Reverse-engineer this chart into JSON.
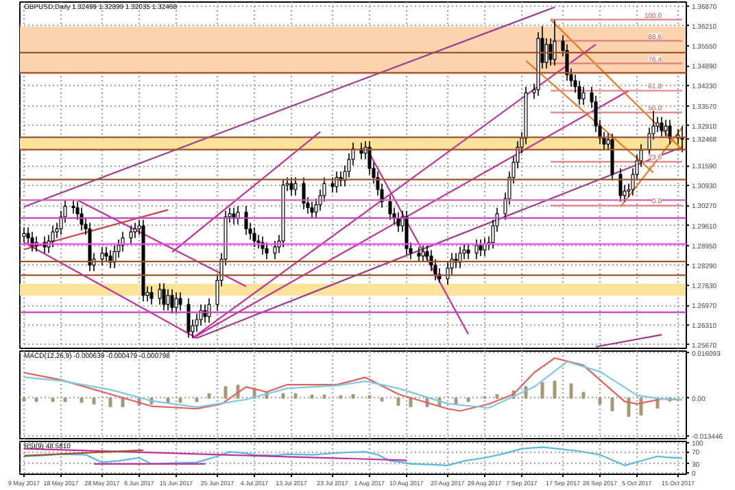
{
  "chart_data": [
    {
      "type": "candlestick",
      "title": "GBPUSD,Daily  1.32499 1.32899 1.32035 1.32468",
      "tick_labels": "y",
      "grid": true,
      "xlim": [
        "2017-05-08",
        "2017-10-17"
      ],
      "xticks": [
        "2017-05-09",
        "2017-05-18",
        "2017-05-28",
        "2017-06-06",
        "2017-06-15",
        "2017-06-25",
        "2017-07-04",
        "2017-07-13",
        "2017-07-23",
        "2017-08-01",
        "2017-08-10",
        "2017-08-20",
        "2017-08-29",
        "2017-09-07",
        "2017-09-17",
        "2017-09-26",
        "2017-10-05",
        "2017-10-15"
      ],
      "ylim": [
        1.2555,
        1.37
      ],
      "yticks": [
        {
          "value": 1.3687,
          "label": "1.36870"
        },
        {
          "value": 1.3621,
          "label": "1.36210"
        },
        {
          "value": 1.3555,
          "label": "1.35550"
        },
        {
          "value": 1.3489,
          "label": "1.34890"
        },
        {
          "value": 1.3423,
          "label": "1.34230"
        },
        {
          "value": 1.3357,
          "label": "1.33570"
        },
        {
          "value": 1.3291,
          "label": "1.32910"
        },
        {
          "value": 1.32468,
          "label": "1.32468"
        },
        {
          "value": 1.3159,
          "label": "1.31590"
        },
        {
          "value": 1.3093,
          "label": "1.30930"
        },
        {
          "value": 1.3027,
          "label": "1.30270"
        },
        {
          "value": 1.2961,
          "label": "1.29610"
        },
        {
          "value": 1.2895,
          "label": "1.28950"
        },
        {
          "value": 1.2829,
          "label": "1.28290"
        },
        {
          "value": 1.2763,
          "label": "1.27630"
        },
        {
          "value": 1.2697,
          "label": "1.26970"
        },
        {
          "value": 1.2631,
          "label": "1.26310"
        },
        {
          "value": 1.2567,
          "label": "1.25670"
        }
      ],
      "x": [
        "2017-05-09",
        "2017-05-10",
        "2017-05-11",
        "2017-05-12",
        "2017-05-14",
        "2017-05-15",
        "2017-05-16",
        "2017-05-17",
        "2017-05-18",
        "2017-05-19",
        "2017-05-21",
        "2017-05-22",
        "2017-05-23",
        "2017-05-24",
        "2017-05-25",
        "2017-05-26",
        "2017-05-28",
        "2017-05-29",
        "2017-05-30",
        "2017-05-31",
        "2017-06-01",
        "2017-06-02",
        "2017-06-04",
        "2017-06-05",
        "2017-06-06",
        "2017-06-07",
        "2017-06-08",
        "2017-06-09",
        "2017-06-11",
        "2017-06-12",
        "2017-06-13",
        "2017-06-14",
        "2017-06-15",
        "2017-06-16",
        "2017-06-18",
        "2017-06-19",
        "2017-06-20",
        "2017-06-21",
        "2017-06-22",
        "2017-06-23",
        "2017-06-25",
        "2017-06-26",
        "2017-06-27",
        "2017-06-28",
        "2017-06-29",
        "2017-06-30",
        "2017-07-02",
        "2017-07-03",
        "2017-07-04",
        "2017-07-05",
        "2017-07-06",
        "2017-07-07",
        "2017-07-09",
        "2017-07-10",
        "2017-07-11",
        "2017-07-12",
        "2017-07-13",
        "2017-07-14",
        "2017-07-16",
        "2017-07-17",
        "2017-07-18",
        "2017-07-19",
        "2017-07-20",
        "2017-07-21",
        "2017-07-23",
        "2017-07-24",
        "2017-07-25",
        "2017-07-26",
        "2017-07-27",
        "2017-07-28",
        "2017-07-30",
        "2017-07-31",
        "2017-08-01",
        "2017-08-02",
        "2017-08-03",
        "2017-08-04",
        "2017-08-06",
        "2017-08-07",
        "2017-08-08",
        "2017-08-09",
        "2017-08-10",
        "2017-08-11",
        "2017-08-13",
        "2017-08-14",
        "2017-08-15",
        "2017-08-16",
        "2017-08-17",
        "2017-08-18",
        "2017-08-20",
        "2017-08-21",
        "2017-08-22",
        "2017-08-23",
        "2017-08-24",
        "2017-08-25",
        "2017-08-27",
        "2017-08-28",
        "2017-08-29",
        "2017-08-30",
        "2017-08-31",
        "2017-09-01",
        "2017-09-03",
        "2017-09-04",
        "2017-09-05",
        "2017-09-06",
        "2017-09-07",
        "2017-09-08",
        "2017-09-10",
        "2017-09-11",
        "2017-09-12",
        "2017-09-13",
        "2017-09-14",
        "2017-09-15",
        "2017-09-17",
        "2017-09-18",
        "2017-09-19",
        "2017-09-20",
        "2017-09-21",
        "2017-09-22",
        "2017-09-24",
        "2017-09-25",
        "2017-09-26",
        "2017-09-27",
        "2017-09-28",
        "2017-09-29",
        "2017-10-01",
        "2017-10-02",
        "2017-10-03",
        "2017-10-04",
        "2017-10-05",
        "2017-10-06",
        "2017-10-08",
        "2017-10-09",
        "2017-10-10",
        "2017-10-11",
        "2017-10-12",
        "2017-10-13",
        "2017-10-15",
        "2017-10-16"
      ],
      "ohlc": [
        [
          1.2925,
          1.2955,
          1.2905,
          1.2935
        ],
        [
          1.2935,
          1.2955,
          1.29,
          1.292
        ],
        [
          1.292,
          1.294,
          1.2875,
          1.2895
        ],
        [
          1.2895,
          1.2925,
          1.2875,
          1.2905
        ],
        [
          1.2905,
          1.2925,
          1.287,
          1.289
        ],
        [
          1.289,
          1.293,
          1.287,
          1.291
        ],
        [
          1.291,
          1.296,
          1.289,
          1.294
        ],
        [
          1.294,
          1.297,
          1.292,
          1.295
        ],
        [
          1.295,
          1.301,
          1.293,
          1.299
        ],
        [
          1.299,
          1.3045,
          1.297,
          1.3025
        ],
        [
          1.3025,
          1.3045,
          1.3,
          1.302
        ],
        [
          1.302,
          1.304,
          1.298,
          1.3
        ],
        [
          1.3,
          1.302,
          1.2945,
          1.2965
        ],
        [
          1.2965,
          1.2985,
          1.293,
          1.295
        ],
        [
          1.295,
          1.297,
          1.281,
          1.283
        ],
        [
          1.283,
          1.287,
          1.281,
          1.285
        ],
        [
          1.285,
          1.289,
          1.283,
          1.287
        ],
        [
          1.287,
          1.289,
          1.284,
          1.286
        ],
        [
          1.286,
          1.288,
          1.282,
          1.284
        ],
        [
          1.284,
          1.2895,
          1.282,
          1.2875
        ],
        [
          1.2875,
          1.2915,
          1.2855,
          1.2895
        ],
        [
          1.2895,
          1.294,
          1.2875,
          1.292
        ],
        [
          1.292,
          1.296,
          1.29,
          1.294
        ],
        [
          1.294,
          1.297,
          1.292,
          1.295
        ],
        [
          1.295,
          1.298,
          1.293,
          1.296
        ],
        [
          1.296,
          1.298,
          1.271,
          1.273
        ],
        [
          1.273,
          1.276,
          1.271,
          1.274
        ],
        [
          1.274,
          1.276,
          1.27,
          1.272
        ],
        [
          1.272,
          1.277,
          1.27,
          1.275
        ],
        [
          1.275,
          1.277,
          1.268,
          1.27
        ],
        [
          1.27,
          1.275,
          1.268,
          1.273
        ],
        [
          1.273,
          1.275,
          1.267,
          1.269
        ],
        [
          1.269,
          1.274,
          1.267,
          1.272
        ],
        [
          1.272,
          1.274,
          1.268,
          1.27
        ],
        [
          1.27,
          1.272,
          1.259,
          1.261
        ],
        [
          1.261,
          1.265,
          1.259,
          1.263
        ],
        [
          1.263,
          1.267,
          1.261,
          1.265
        ],
        [
          1.265,
          1.27,
          1.263,
          1.268
        ],
        [
          1.268,
          1.27,
          1.264,
          1.266
        ],
        [
          1.266,
          1.272,
          1.264,
          1.27
        ],
        [
          1.27,
          1.28,
          1.268,
          1.278
        ],
        [
          1.278,
          1.287,
          1.276,
          1.285
        ],
        [
          1.285,
          1.301,
          1.283,
          1.299
        ],
        [
          1.299,
          1.302,
          1.297,
          1.3
        ],
        [
          1.3,
          1.302,
          1.2965,
          1.2985
        ],
        [
          1.2985,
          1.3025,
          1.2965,
          1.3005
        ],
        [
          1.3005,
          1.3025,
          1.293,
          1.295
        ],
        [
          1.295,
          1.297,
          1.2915,
          1.2935
        ],
        [
          1.2935,
          1.2955,
          1.289,
          1.291
        ],
        [
          1.291,
          1.293,
          1.2885,
          1.2905
        ],
        [
          1.2905,
          1.2925,
          1.2865,
          1.2885
        ],
        [
          1.2885,
          1.2905,
          1.285,
          1.287
        ],
        [
          1.287,
          1.291,
          1.285,
          1.289
        ],
        [
          1.289,
          1.293,
          1.287,
          1.291
        ],
        [
          1.291,
          1.3115,
          1.289,
          1.3095
        ],
        [
          1.3095,
          1.312,
          1.3075,
          1.31
        ],
        [
          1.31,
          1.312,
          1.306,
          1.308
        ],
        [
          1.308,
          1.312,
          1.306,
          1.31
        ],
        [
          1.31,
          1.312,
          1.3015,
          1.3035
        ],
        [
          1.3035,
          1.3055,
          1.3,
          1.302
        ],
        [
          1.302,
          1.304,
          1.2985,
          1.3005
        ],
        [
          1.3005,
          1.305,
          1.2985,
          1.303
        ],
        [
          1.303,
          1.308,
          1.301,
          1.306
        ],
        [
          1.306,
          1.312,
          1.304,
          1.31
        ],
        [
          1.31,
          1.312,
          1.307,
          1.309
        ],
        [
          1.309,
          1.314,
          1.307,
          1.312
        ],
        [
          1.312,
          1.314,
          1.309,
          1.311
        ],
        [
          1.311,
          1.316,
          1.309,
          1.314
        ],
        [
          1.314,
          1.32,
          1.312,
          1.318
        ],
        [
          1.318,
          1.3235,
          1.316,
          1.3215
        ],
        [
          1.3215,
          1.3235,
          1.318,
          1.32
        ],
        [
          1.32,
          1.324,
          1.318,
          1.322
        ],
        [
          1.322,
          1.324,
          1.313,
          1.315
        ],
        [
          1.315,
          1.317,
          1.31,
          1.312
        ],
        [
          1.312,
          1.314,
          1.306,
          1.308
        ],
        [
          1.308,
          1.31,
          1.302,
          1.304
        ],
        [
          1.304,
          1.306,
          1.298,
          1.3
        ],
        [
          1.3,
          1.302,
          1.2965,
          1.2985
        ],
        [
          1.2985,
          1.3005,
          1.294,
          1.296
        ],
        [
          1.296,
          1.301,
          1.294,
          1.299
        ],
        [
          1.299,
          1.301,
          1.2865,
          1.2885
        ],
        [
          1.2885,
          1.2905,
          1.285,
          1.287
        ],
        [
          1.287,
          1.289,
          1.284,
          1.286
        ],
        [
          1.286,
          1.2895,
          1.284,
          1.2875
        ],
        [
          1.2875,
          1.2895,
          1.284,
          1.286
        ],
        [
          1.286,
          1.288,
          1.281,
          1.283
        ],
        [
          1.283,
          1.285,
          1.278,
          1.28
        ],
        [
          1.28,
          1.282,
          1.2772,
          1.2785
        ],
        [
          1.2785,
          1.284,
          1.2765,
          1.282
        ],
        [
          1.282,
          1.287,
          1.28,
          1.285
        ],
        [
          1.285,
          1.287,
          1.282,
          1.284
        ],
        [
          1.284,
          1.289,
          1.282,
          1.287
        ],
        [
          1.287,
          1.29,
          1.285,
          1.288
        ],
        [
          1.288,
          1.29,
          1.285,
          1.287
        ],
        [
          1.287,
          1.2915,
          1.285,
          1.2895
        ],
        [
          1.2895,
          1.2915,
          1.286,
          1.288
        ],
        [
          1.288,
          1.292,
          1.286,
          1.29
        ],
        [
          1.29,
          1.2925,
          1.288,
          1.2905
        ],
        [
          1.2905,
          1.298,
          1.2885,
          1.296
        ],
        [
          1.296,
          1.302,
          1.294,
          1.3
        ],
        [
          1.3,
          1.307,
          1.298,
          1.305
        ],
        [
          1.305,
          1.314,
          1.303,
          1.312
        ],
        [
          1.312,
          1.319,
          1.31,
          1.317
        ],
        [
          1.317,
          1.324,
          1.315,
          1.322
        ],
        [
          1.322,
          1.327,
          1.32,
          1.325
        ],
        [
          1.325,
          1.342,
          1.323,
          1.34
        ],
        [
          1.34,
          1.343,
          1.338,
          1.341
        ],
        [
          1.341,
          1.36,
          1.339,
          1.358
        ],
        [
          1.358,
          1.362,
          1.348,
          1.35
        ],
        [
          1.35,
          1.358,
          1.348,
          1.356
        ],
        [
          1.356,
          1.358,
          1.349,
          1.351
        ],
        [
          1.351,
          1.364,
          1.349,
          1.357
        ],
        [
          1.357,
          1.359,
          1.352,
          1.354
        ],
        [
          1.354,
          1.356,
          1.344,
          1.346
        ],
        [
          1.346,
          1.348,
          1.342,
          1.344
        ],
        [
          1.344,
          1.346,
          1.34,
          1.342
        ],
        [
          1.342,
          1.344,
          1.336,
          1.338
        ],
        [
          1.338,
          1.342,
          1.336,
          1.34
        ],
        [
          1.34,
          1.342,
          1.335,
          1.337
        ],
        [
          1.337,
          1.339,
          1.327,
          1.329
        ],
        [
          1.329,
          1.331,
          1.323,
          1.325
        ],
        [
          1.325,
          1.327,
          1.321,
          1.323
        ],
        [
          1.323,
          1.3265,
          1.321,
          1.3245
        ],
        [
          1.3245,
          1.3265,
          1.311,
          1.313
        ],
        [
          1.313,
          1.315,
          1.304,
          1.306
        ],
        [
          1.306,
          1.3095,
          1.304,
          1.3075
        ],
        [
          1.3075,
          1.31,
          1.3055,
          1.308
        ],
        [
          1.308,
          1.315,
          1.306,
          1.313
        ],
        [
          1.313,
          1.3195,
          1.311,
          1.3175
        ],
        [
          1.3175,
          1.323,
          1.3155,
          1.321
        ],
        [
          1.321,
          1.3285,
          1.319,
          1.3265
        ],
        [
          1.3265,
          1.334,
          1.3245,
          1.329
        ],
        [
          1.329,
          1.332,
          1.327,
          1.33
        ],
        [
          1.33,
          1.332,
          1.3255,
          1.3275
        ],
        [
          1.3275,
          1.331,
          1.3255,
          1.329
        ],
        [
          1.329,
          1.331,
          1.323,
          1.325
        ],
        [
          1.325,
          1.328,
          1.323,
          1.326
        ],
        [
          1.32499,
          1.32899,
          1.32035,
          1.32468
        ]
      ],
      "bands": [
        {
          "axis": "y",
          "from": 1.3461,
          "to": 1.3619,
          "color": "#fbd3ae"
        },
        {
          "axis": "y",
          "from": 1.2729,
          "to": 1.2769,
          "color": "#fbe49a"
        },
        {
          "axis": "y",
          "from": 1.3212,
          "to": 1.3249,
          "color": "#fbe49a"
        }
      ],
      "ref_lines": [
        {
          "axis": "y",
          "value": 1.3533,
          "color": "#a0522d"
        },
        {
          "axis": "y",
          "value": 1.3466,
          "color": "#a0522d"
        },
        {
          "axis": "y",
          "value": 1.3253,
          "color": "#a0522d"
        },
        {
          "axis": "y",
          "value": 1.3212,
          "color": "#a0522d"
        },
        {
          "axis": "y",
          "value": 1.3113,
          "color": "#a0522d"
        },
        {
          "axis": "y",
          "value": 1.3045,
          "color": "#d060b0"
        },
        {
          "axis": "y",
          "value": 1.2986,
          "color": "#c040c0"
        },
        {
          "axis": "y",
          "value": 1.29,
          "color": "#ff40ff"
        },
        {
          "axis": "y",
          "value": 1.2842,
          "color": "#a0522d"
        },
        {
          "axis": "y",
          "value": 1.2797,
          "color": "#a0522d"
        },
        {
          "axis": "y",
          "value": 1.2674,
          "color": "#c040c0"
        }
      ],
      "series": [
        {
          "type": "line",
          "color": "#9b3b8f",
          "x": [
            "2017-05-09",
            "2017-09-15"
          ],
          "values": [
            1.3023,
            1.3683
          ]
        },
        {
          "type": "line",
          "color": "#c0309c",
          "x": [
            "2017-06-14",
            "2017-07-20"
          ],
          "values": [
            1.2873,
            1.3271
          ]
        },
        {
          "type": "line",
          "color": "#d04040",
          "x": [
            "2017-05-09",
            "2017-06-13"
          ],
          "values": [
            1.2882,
            1.3013
          ]
        },
        {
          "type": "line",
          "color": "#c0309c",
          "x": [
            "2017-05-22",
            "2017-07-02"
          ],
          "values": [
            1.3045,
            1.276
          ]
        },
        {
          "type": "line",
          "color": "#c0309c",
          "x": [
            "2017-05-09",
            "2017-06-20"
          ],
          "values": [
            1.2905,
            1.2589
          ]
        },
        {
          "type": "line",
          "color": "#c0309c",
          "x": [
            "2017-06-19",
            "2017-10-03"
          ],
          "values": [
            1.2589,
            1.3407
          ]
        },
        {
          "type": "line",
          "color": "#c0309c",
          "x": [
            "2017-06-19",
            "2017-09-25"
          ],
          "values": [
            1.2589,
            1.356
          ]
        },
        {
          "type": "line",
          "color": "#9b3b8f",
          "x": [
            "2017-06-20",
            "2017-10-16"
          ],
          "values": [
            1.2589,
            1.3221
          ]
        },
        {
          "type": "line",
          "color": "#e87722",
          "x": [
            "2017-09-14",
            "2017-10-16"
          ],
          "values": [
            1.3642,
            1.3212
          ]
        },
        {
          "type": "line",
          "color": "#e87722",
          "x": [
            "2017-09-08",
            "2017-10-09"
          ],
          "values": [
            1.3506,
            1.3136
          ]
        },
        {
          "type": "line",
          "color": "#e87722",
          "x": [
            "2017-10-01",
            "2017-10-16"
          ],
          "values": [
            1.3023,
            1.3285
          ]
        },
        {
          "type": "line",
          "color": "#c0309c",
          "x": [
            "2017-08-01",
            "2017-08-25"
          ],
          "values": [
            1.3199,
            1.2602
          ]
        },
        {
          "type": "line",
          "color": "#9b3b8f",
          "x": [
            "2017-09-25",
            "2017-10-11"
          ],
          "values": [
            1.256,
            1.26
          ]
        },
        {
          "type": "line",
          "color": "#e08080",
          "x": [
            "2017-09-14",
            "2017-10-16"
          ],
          "values": [
            1.3642,
            1.3642
          ]
        },
        {
          "type": "line",
          "color": "#e08080",
          "x": [
            "2017-09-14",
            "2017-10-16"
          ],
          "values": [
            1.3572,
            1.3572
          ]
        },
        {
          "type": "line",
          "color": "#e08080",
          "x": [
            "2017-09-14",
            "2017-10-16"
          ],
          "values": [
            1.3497,
            1.3497
          ]
        },
        {
          "type": "line",
          "color": "#e08080",
          "x": [
            "2017-09-14",
            "2017-10-16"
          ],
          "values": [
            1.3407,
            1.3407
          ]
        },
        {
          "type": "line",
          "color": "#e08080",
          "x": [
            "2017-09-14",
            "2017-10-16"
          ],
          "values": [
            1.3335,
            1.3335
          ]
        },
        {
          "type": "line",
          "color": "#e08080",
          "x": [
            "2017-09-14",
            "2017-10-16"
          ],
          "values": [
            1.3172,
            1.3172
          ]
        },
        {
          "type": "line",
          "color": "#e08080",
          "x": [
            "2017-09-14",
            "2017-10-16"
          ],
          "values": [
            1.3027,
            1.3027
          ]
        }
      ],
      "annotations": [
        {
          "text": "100.0",
          "x": "2017-10-11",
          "y": 1.3642
        },
        {
          "text": "88.6",
          "x": "2017-10-11",
          "y": 1.3572
        },
        {
          "text": "76.4",
          "x": "2017-10-11",
          "y": 1.3497
        },
        {
          "text": "61.8",
          "x": "2017-10-11",
          "y": 1.3407
        },
        {
          "text": "50.0",
          "x": "2017-10-11",
          "y": 1.3335
        },
        {
          "text": "23.6",
          "x": "2017-10-11",
          "y": 1.3172
        },
        {
          "text": "0.0",
          "x": "2017-10-11",
          "y": 1.3027
        }
      ]
    },
    {
      "type": "bar",
      "title": "MACD(12,26,9) -0.000639 -0.000479 -0.000798",
      "tick_labels": "y",
      "grid": true,
      "xlim": [
        "2017-05-08",
        "2017-10-17"
      ],
      "xticks": [
        "2017-05-09",
        "2017-05-18",
        "2017-05-28",
        "2017-06-06",
        "2017-06-15",
        "2017-06-25",
        "2017-07-04",
        "2017-07-13",
        "2017-07-23",
        "2017-08-01",
        "2017-08-10",
        "2017-08-20",
        "2017-08-29",
        "2017-09-07",
        "2017-09-17",
        "2017-09-26",
        "2017-10-05",
        "2017-10-15"
      ],
      "ylim": [
        -0.0145,
        0.0168
      ],
      "yticks": [
        {
          "value": 0.016093,
          "label": "0.016093"
        },
        {
          "value": 0,
          "label": "0.00"
        },
        {
          "value": -0.013446,
          "label": "-0.013446"
        }
      ],
      "series": [
        {
          "type": "bar",
          "color": "#a8977a",
          "x": [
            "2017-05-09",
            "2017-05-12",
            "2017-05-16",
            "2017-05-19",
            "2017-05-23",
            "2017-05-26",
            "2017-05-30",
            "2017-06-02",
            "2017-06-06",
            "2017-06-09",
            "2017-06-13",
            "2017-06-16",
            "2017-06-20",
            "2017-06-23",
            "2017-06-27",
            "2017-06-30",
            "2017-07-04",
            "2017-07-07",
            "2017-07-11",
            "2017-07-14",
            "2017-07-18",
            "2017-07-21",
            "2017-07-25",
            "2017-07-28",
            "2017-08-01",
            "2017-08-04",
            "2017-08-08",
            "2017-08-11",
            "2017-08-15",
            "2017-08-18",
            "2017-08-22",
            "2017-08-25",
            "2017-08-29",
            "2017-09-01",
            "2017-09-05",
            "2017-09-08",
            "2017-09-12",
            "2017-09-15",
            "2017-09-19",
            "2017-09-22",
            "2017-09-26",
            "2017-09-29",
            "2017-10-03",
            "2017-10-06",
            "2017-10-10",
            "2017-10-13"
          ],
          "values": [
            -0.001,
            -0.0012,
            -0.0012,
            -0.0012,
            -0.0015,
            -0.002,
            -0.003,
            -0.003,
            -0.0025,
            -0.002,
            -0.0018,
            -0.0015,
            -0.0012,
            0.0015,
            0.004,
            0.0045,
            0.0035,
            0.002,
            0.0015,
            0.0015,
            0.001,
            0.001,
            0.0008,
            0.0012,
            0.0008,
            -0.001,
            -0.0025,
            -0.003,
            -0.003,
            -0.0025,
            -0.002,
            -0.0012,
            0.0005,
            0.0012,
            0.0025,
            0.004,
            0.0055,
            0.006,
            0.005,
            0.002,
            -0.002,
            -0.0045,
            -0.0065,
            -0.006,
            -0.0035,
            -0.001
          ]
        },
        {
          "type": "line",
          "color": "#e0605a",
          "x": [
            "2017-05-09",
            "2017-05-18",
            "2017-05-30",
            "2017-06-09",
            "2017-06-20",
            "2017-06-26",
            "2017-07-02",
            "2017-07-07",
            "2017-07-12",
            "2017-07-24",
            "2017-07-31",
            "2017-08-08",
            "2017-08-20",
            "2017-08-23",
            "2017-08-30",
            "2017-09-05",
            "2017-09-10",
            "2017-09-15",
            "2017-09-22",
            "2017-09-26",
            "2017-10-02",
            "2017-10-05",
            "2017-10-11",
            "2017-10-16"
          ],
          "values": [
            0.0091,
            0.0065,
            0.0014,
            -0.0029,
            -0.0038,
            -0.0021,
            0.004,
            0.0022,
            0.0048,
            0.0048,
            0.0074,
            0.0014,
            -0.0038,
            -0.0046,
            -0.0021,
            0.0014,
            0.0091,
            0.0143,
            0.0117,
            0.0065,
            -0.0012,
            -0.0021,
            -0.0003,
            -0.0006
          ]
        },
        {
          "type": "line",
          "color": "#7ec8e3",
          "x": [
            "2017-05-09",
            "2017-05-18",
            "2017-05-30",
            "2017-06-09",
            "2017-06-20",
            "2017-07-02",
            "2017-07-12",
            "2017-07-24",
            "2017-07-31",
            "2017-08-08",
            "2017-08-20",
            "2017-08-30",
            "2017-09-10",
            "2017-09-18",
            "2017-09-26",
            "2017-10-05",
            "2017-10-11",
            "2017-10-16"
          ],
          "values": [
            0.0075,
            0.0062,
            0.003,
            -0.001,
            -0.0032,
            -0.0005,
            0.0035,
            0.0045,
            0.006,
            0.0035,
            -0.002,
            -0.0035,
            0.004,
            0.013,
            0.0095,
            0.001,
            -0.0003,
            -0.0005
          ]
        }
      ]
    },
    {
      "type": "line",
      "title": "RSI(9) 48.5810",
      "grid": true,
      "xlim": [
        "2017-05-08",
        "2017-10-17"
      ],
      "xticks": [
        {
          "value": "2017-05-09",
          "label": "9 May 2017"
        },
        {
          "value": "2017-05-18",
          "label": "18 May 2017"
        },
        {
          "value": "2017-05-28",
          "label": "28 May 2017"
        },
        {
          "value": "2017-06-06",
          "label": "6 Jun 2017"
        },
        {
          "value": "2017-06-15",
          "label": "15 Jun 2017"
        },
        {
          "value": "2017-06-25",
          "label": "25 Jun 2017"
        },
        {
          "value": "2017-07-04",
          "label": "4 Jul 2017"
        },
        {
          "value": "2017-07-13",
          "label": "13 Jul 2017"
        },
        {
          "value": "2017-07-23",
          "label": "23 Jul 2017"
        },
        {
          "value": "2017-08-01",
          "label": "1 Aug 2017"
        },
        {
          "value": "2017-08-10",
          "label": "10 Aug 2017"
        },
        {
          "value": "2017-08-20",
          "label": "20 Aug 2017"
        },
        {
          "value": "2017-08-29",
          "label": "29 Aug 2017"
        },
        {
          "value": "2017-09-07",
          "label": "7 Sep 2017"
        },
        {
          "value": "2017-09-17",
          "label": "17 Sep 2017"
        },
        {
          "value": "2017-09-26",
          "label": "26 Sep 2017"
        },
        {
          "value": "2017-10-05",
          "label": "5 Oct 2017"
        },
        {
          "value": "2017-10-15",
          "label": "15 Oct 2017"
        }
      ],
      "ylim": [
        -4,
        104
      ],
      "yticks": [
        0,
        30,
        70,
        100
      ],
      "series": [
        {
          "type": "line",
          "color": "#5bb8e0",
          "x": [
            "2017-05-09",
            "2017-05-14",
            "2017-05-18",
            "2017-05-24",
            "2017-05-28",
            "2017-06-01",
            "2017-06-06",
            "2017-06-09",
            "2017-06-14",
            "2017-06-20",
            "2017-06-25",
            "2017-06-28",
            "2017-07-02",
            "2017-07-04",
            "2017-07-09",
            "2017-07-12",
            "2017-07-18",
            "2017-07-23",
            "2017-07-27",
            "2017-07-31",
            "2017-08-03",
            "2017-08-06",
            "2017-08-09",
            "2017-08-11",
            "2017-08-16",
            "2017-08-20",
            "2017-08-24",
            "2017-08-29",
            "2017-09-03",
            "2017-09-07",
            "2017-09-12",
            "2017-09-17",
            "2017-09-21",
            "2017-09-26",
            "2017-10-02",
            "2017-10-06",
            "2017-10-10",
            "2017-10-12",
            "2017-10-16"
          ],
          "values": [
            55,
            58,
            62,
            60,
            35,
            40,
            50,
            30,
            33,
            35,
            55,
            70,
            65,
            60,
            58,
            62,
            60,
            65,
            68,
            70,
            60,
            40,
            35,
            30,
            28,
            25,
            40,
            50,
            65,
            80,
            85,
            78,
            72,
            60,
            25,
            40,
            55,
            52,
            49
          ]
        },
        {
          "type": "line",
          "color": "#c0309c",
          "x": [
            "2017-05-09",
            "2017-08-10"
          ],
          "values": [
            80,
            42
          ]
        },
        {
          "type": "line",
          "color": "#c0309c",
          "x": [
            "2017-05-26",
            "2017-06-22"
          ],
          "values": [
            30,
            30
          ]
        },
        {
          "type": "line",
          "color": "#a0522d",
          "x": [
            "2017-05-09",
            "2017-06-07"
          ],
          "values": [
            57,
            75
          ]
        }
      ]
    }
  ]
}
